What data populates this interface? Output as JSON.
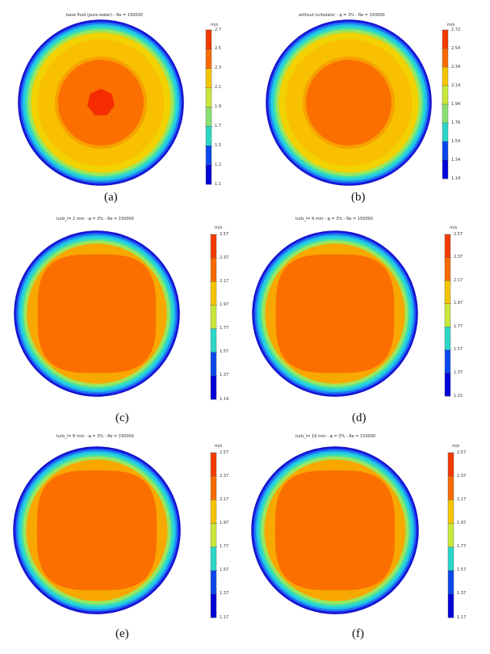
{
  "panels": [
    {
      "caption": "(a)",
      "title": "base fluid (pure water) - Re = 150000",
      "unit": "m/s",
      "ticks": [
        "2.7",
        "2.5",
        "2.3",
        "2.1",
        "1.9",
        "1.7",
        "1.5",
        "1.2",
        "1.1"
      ],
      "shape": "hexagon-core"
    },
    {
      "caption": "(b)",
      "title": "without turbolator - φ = 3% - Re = 150000",
      "unit": "m/s",
      "ticks": [
        "2.72",
        "2.54",
        "2.34",
        "2.14",
        "1.94",
        "1.76",
        "1.54",
        "1.34",
        "1.14"
      ],
      "shape": "round-core"
    },
    {
      "caption": "(c)",
      "title": "turb_l= 2 mm - φ = 3% - Re = 150000",
      "unit": "m/s",
      "ticks": [
        "2.57",
        "2.37",
        "2.17",
        "1.97",
        "1.77",
        "1.57",
        "1.37",
        "1.14"
      ],
      "shape": "flat-core"
    },
    {
      "caption": "(d)",
      "title": "turb_l= 4 mm - φ = 3% - Re = 150000",
      "unit": "m/s",
      "ticks": [
        "2.57",
        "2.37",
        "2.17",
        "1.97",
        "1.77",
        "1.57",
        "1.37",
        "1.15"
      ],
      "shape": "flat-core"
    },
    {
      "caption": "(e)",
      "title": "turb_l= 8 mm - φ = 3% - Re = 150000",
      "unit": "m/s",
      "ticks": [
        "2.57",
        "2.37",
        "2.17",
        "1.97",
        "1.77",
        "1.57",
        "1.37",
        "1.17"
      ],
      "shape": "flat-core"
    },
    {
      "caption": "(f)",
      "title": "turb_l= 16 mm - φ = 3% - Re = 150000",
      "unit": "m/s",
      "ticks": [
        "2.57",
        "2.37",
        "2.17",
        "1.97",
        "1.77",
        "1.57",
        "1.37",
        "1.17"
      ],
      "shape": "flat-core"
    }
  ],
  "colors": {
    "colormap": [
      "#0000d8",
      "#0a48ee",
      "#1aa6ee",
      "#2ad6c8",
      "#88e070",
      "#c8e83a",
      "#f4c400",
      "#f49000",
      "#f86a00",
      "#f43a00"
    ],
    "ring": [
      "#1e22e8",
      "#1c7ef0",
      "#22c8e8",
      "#3ee0b0",
      "#9ae660",
      "#f2d200",
      "#f8a000",
      "#fb6f00"
    ],
    "core": "#fb6f00",
    "peak": "#f42c00"
  }
}
